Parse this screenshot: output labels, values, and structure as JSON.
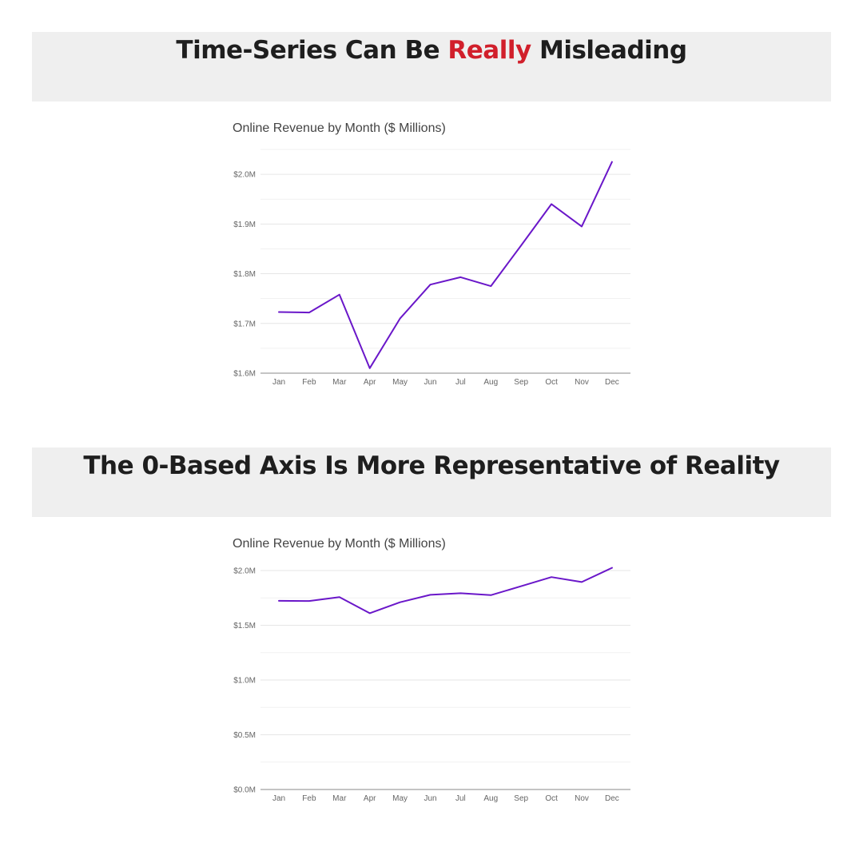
{
  "panels": [
    {
      "heading": {
        "before": "Time-Series Can Be ",
        "highlight": "Really",
        "after": " Misleading"
      }
    },
    {
      "heading": {
        "before": "The 0-Based Axis Is More Representative of Reality",
        "highlight": "",
        "after": ""
      }
    }
  ],
  "colors": {
    "highlight": "#d11f2b",
    "series": "#6a17c9",
    "banner": "#efefef"
  },
  "chart_data": [
    {
      "type": "line",
      "title": "Online Revenue by Month ($ Millions)",
      "xlabel": "",
      "ylabel": "",
      "categories": [
        "Jan",
        "Feb",
        "Mar",
        "Apr",
        "May",
        "Jun",
        "Jul",
        "Aug",
        "Sep",
        "Oct",
        "Nov",
        "Dec"
      ],
      "values": [
        1.723,
        1.722,
        1.758,
        1.61,
        1.71,
        1.778,
        1.793,
        1.775,
        1.857,
        1.94,
        1.895,
        2.025
      ],
      "ylim": [
        1.6,
        2.05
      ],
      "yticks": [
        1.6,
        1.7,
        1.8,
        1.9,
        2.0
      ],
      "ytick_labels": [
        "$1.6M",
        "$1.7M",
        "$1.8M",
        "$1.9M",
        "$2.0M"
      ],
      "grid": true,
      "legend": "none"
    },
    {
      "type": "line",
      "title": "Online Revenue by Month ($ Millions)",
      "xlabel": "",
      "ylabel": "",
      "categories": [
        "Jan",
        "Feb",
        "Mar",
        "Apr",
        "May",
        "Jun",
        "Jul",
        "Aug",
        "Sep",
        "Oct",
        "Nov",
        "Dec"
      ],
      "values": [
        1.723,
        1.722,
        1.758,
        1.61,
        1.71,
        1.778,
        1.793,
        1.775,
        1.857,
        1.94,
        1.895,
        2.025
      ],
      "ylim": [
        0,
        2.0
      ],
      "yticks": [
        0,
        0.5,
        1.0,
        1.5,
        2.0
      ],
      "ytick_labels": [
        "$0.0M",
        "$0.5M",
        "$1.0M",
        "$1.5M",
        "$2.0M"
      ],
      "grid": true,
      "legend": "none"
    }
  ]
}
